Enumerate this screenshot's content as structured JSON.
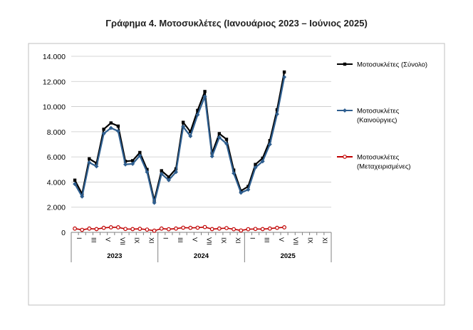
{
  "chart_data": {
    "type": "line",
    "title": "Γράφημα 4. Μοτοσυκλέτες (Ιανουάριος 2023 – Ιούνιος 2025)",
    "xlabel": "",
    "ylabel": "",
    "ylim": [
      0,
      14000
    ],
    "y_ticks": [
      "0",
      "2.000",
      "4.000",
      "6.000",
      "8.000",
      "10.000",
      "12.000",
      "14.000"
    ],
    "grid": "horizontal",
    "legend_position": "right",
    "years": [
      "2023",
      "2024",
      "2025"
    ],
    "x_tick_labels": [
      "I",
      "III",
      "V",
      "VII",
      "IX",
      "XI"
    ],
    "months_per_year": 12,
    "series": [
      {
        "name": "Μοτοσυκλέτες (Σύνολο)",
        "color": "#000000",
        "values": [
          4150,
          3050,
          5850,
          5500,
          8200,
          8700,
          8450,
          5650,
          5700,
          6350,
          5000,
          2550,
          4900,
          4400,
          5050,
          8750,
          8000,
          9700,
          11200,
          6300,
          7850,
          7400,
          4950,
          3300,
          3650,
          5400,
          5900,
          7300,
          9750,
          12750
        ]
      },
      {
        "name": "Μοτοσυκλέτες (Καινούργιες)",
        "color": "#2e5e8f",
        "values": [
          3850,
          2850,
          5550,
          5250,
          7850,
          8300,
          8050,
          5400,
          5450,
          6100,
          4800,
          2350,
          4650,
          4150,
          4800,
          8400,
          7650,
          9350,
          10800,
          6050,
          7550,
          7050,
          4700,
          3150,
          3400,
          5150,
          5650,
          7000,
          9400,
          12350
        ]
      },
      {
        "name": "Μοτοσυκλέτες (Μεταχειρισμένες)",
        "color": "#c00000",
        "values": [
          300,
          200,
          300,
          260,
          360,
          400,
          400,
          270,
          260,
          280,
          220,
          130,
          300,
          250,
          300,
          370,
          360,
          370,
          420,
          260,
          300,
          340,
          250,
          150,
          250,
          270,
          260,
          300,
          360,
          400
        ]
      }
    ]
  }
}
